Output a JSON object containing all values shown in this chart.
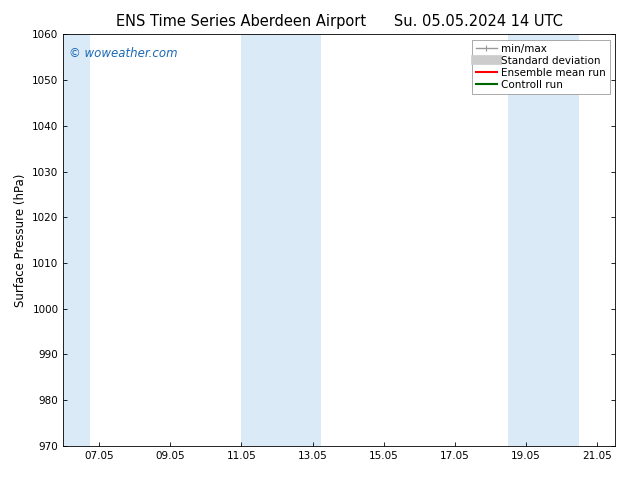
{
  "title_left": "ENS Time Series Aberdeen Airport",
  "title_right": "Su. 05.05.2024 14 UTC",
  "ylabel": "Surface Pressure (hPa)",
  "ylim": [
    970,
    1060
  ],
  "yticks": [
    970,
    980,
    990,
    1000,
    1010,
    1020,
    1030,
    1040,
    1050,
    1060
  ],
  "xlim_start": 6.0,
  "xlim_end": 21.5,
  "xtick_labels": [
    "07.05",
    "09.05",
    "11.05",
    "13.05",
    "15.05",
    "17.05",
    "19.05",
    "21.05"
  ],
  "xtick_positions": [
    7.0,
    9.0,
    11.0,
    13.0,
    15.0,
    17.0,
    19.0,
    21.0
  ],
  "shaded_bands": [
    {
      "x_start": 6.0,
      "x_end": 6.75,
      "color": "#daeaf7"
    },
    {
      "x_start": 11.0,
      "x_end": 12.0,
      "color": "#daeaf7"
    },
    {
      "x_start": 12.0,
      "x_end": 13.25,
      "color": "#daeaf7"
    },
    {
      "x_start": 18.5,
      "x_end": 19.5,
      "color": "#daeaf7"
    },
    {
      "x_start": 19.5,
      "x_end": 20.5,
      "color": "#daeaf7"
    }
  ],
  "watermark_text": "© woweather.com",
  "watermark_color": "#1a6ab5",
  "background_color": "#ffffff",
  "plot_bg_color": "#ffffff",
  "legend_items": [
    {
      "label": "min/max",
      "color": "#999999",
      "linestyle": "-",
      "linewidth": 1.0,
      "type": "errbar"
    },
    {
      "label": "Standard deviation",
      "color": "#cccccc",
      "linestyle": "-",
      "linewidth": 7,
      "type": "thick"
    },
    {
      "label": "Ensemble mean run",
      "color": "#ff0000",
      "linestyle": "-",
      "linewidth": 1.5,
      "type": "line"
    },
    {
      "label": "Controll run",
      "color": "#006600",
      "linestyle": "-",
      "linewidth": 1.5,
      "type": "line"
    }
  ],
  "title_fontsize": 10.5,
  "axis_label_fontsize": 8.5,
  "tick_fontsize": 7.5,
  "legend_fontsize": 7.5,
  "watermark_fontsize": 8.5
}
